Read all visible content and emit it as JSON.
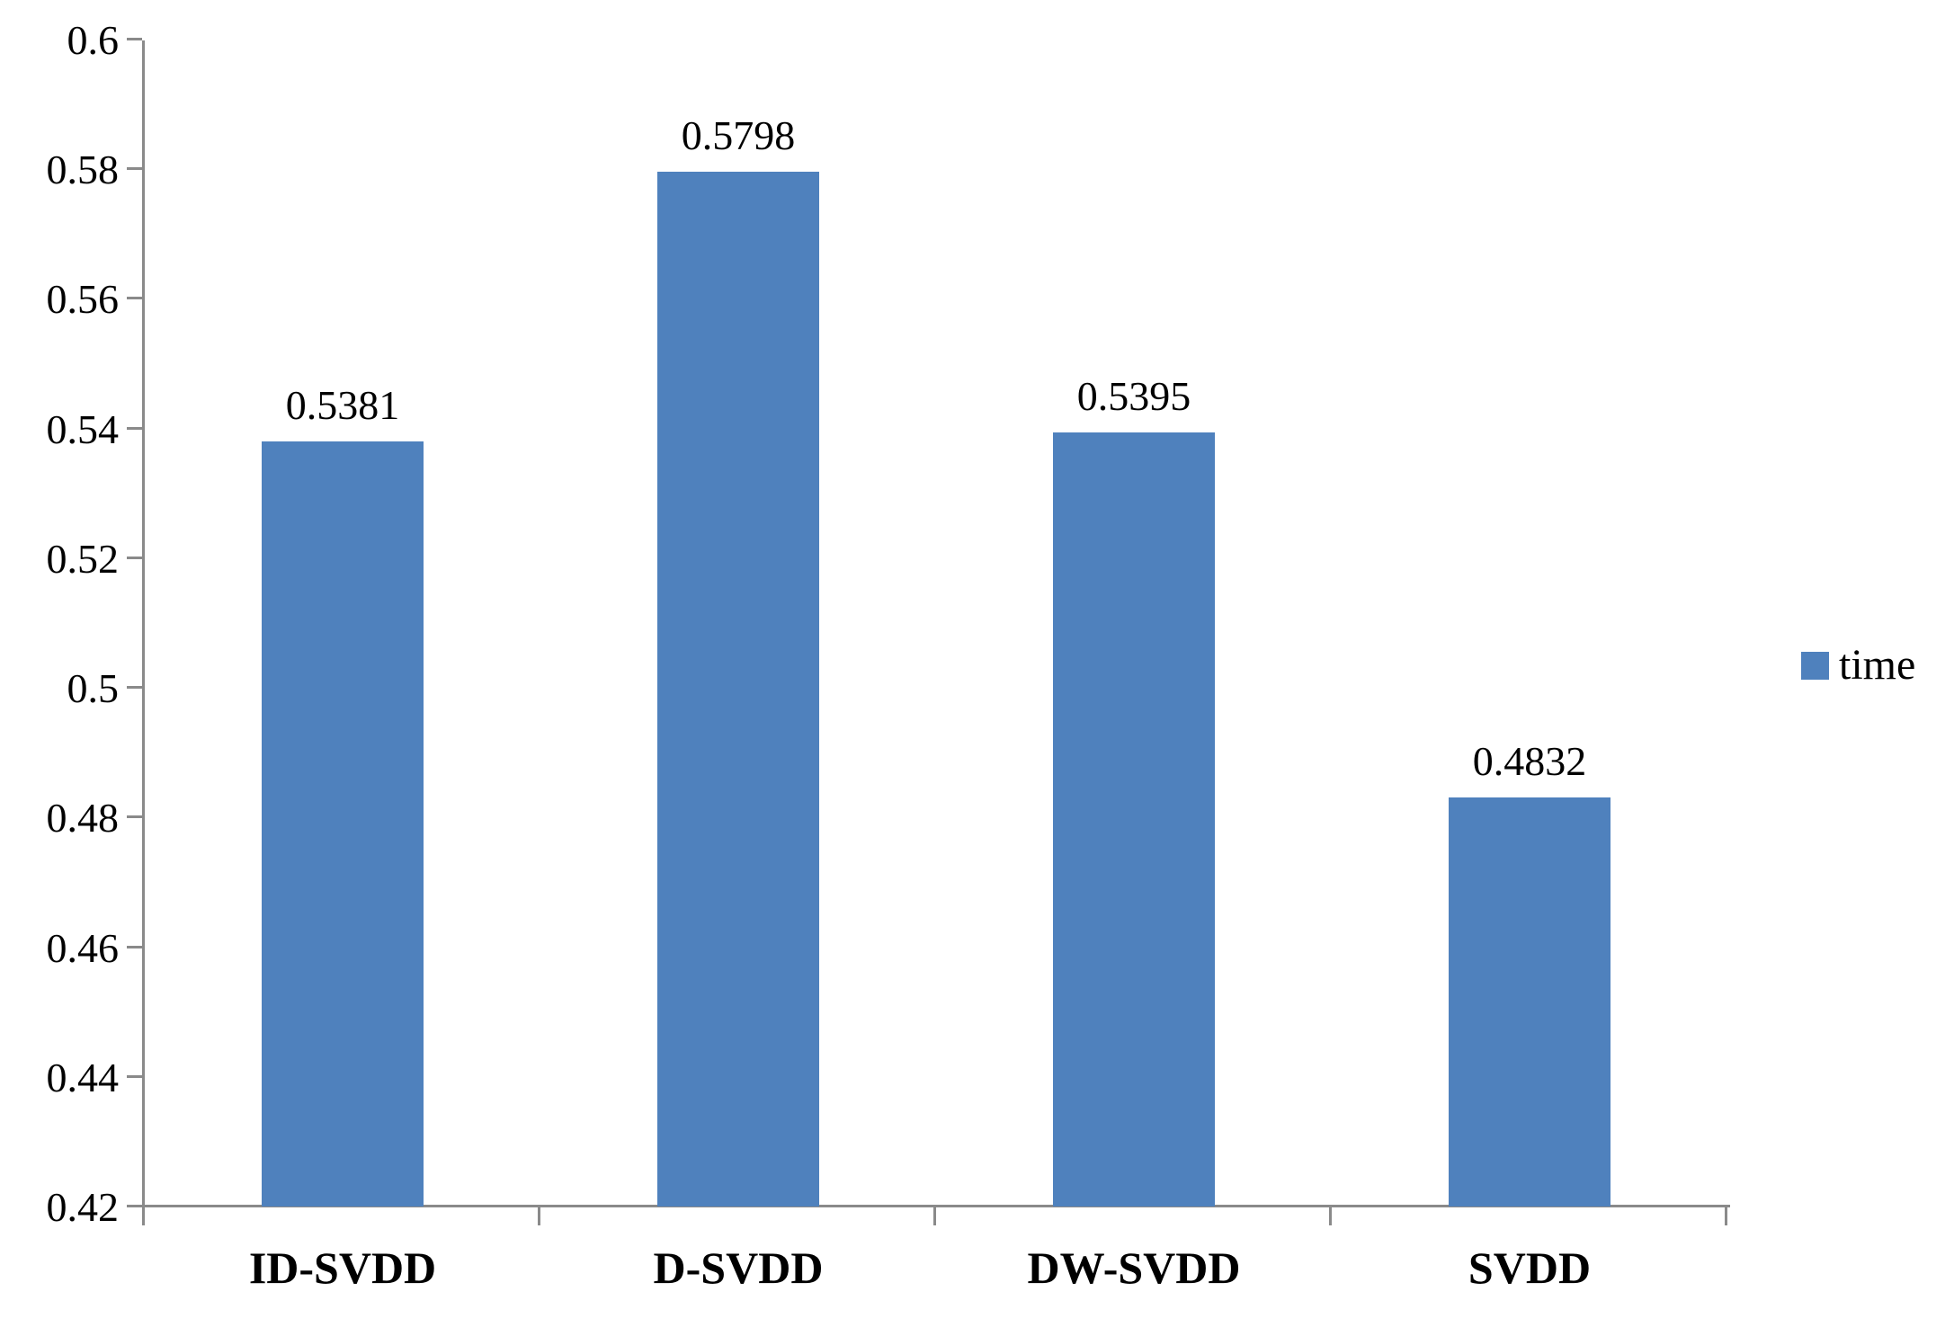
{
  "chart_data": {
    "type": "bar",
    "title": "",
    "xlabel": "",
    "ylabel": "",
    "categories": [
      "ID-SVDD",
      "D-SVDD",
      "DW-SVDD",
      "SVDD"
    ],
    "series": [
      {
        "name": "time",
        "values": [
          0.5381,
          0.5798,
          0.5395,
          0.4832
        ],
        "data_labels": [
          "0.5381",
          "0.5798",
          "0.5395",
          "0.4832"
        ]
      }
    ],
    "ylim": [
      0.42,
      0.6
    ],
    "y_ticks": [
      {
        "value": 0.6,
        "label": "0.6"
      },
      {
        "value": 0.58,
        "label": "0.58"
      },
      {
        "value": 0.56,
        "label": "0.56"
      },
      {
        "value": 0.54,
        "label": "0.54"
      },
      {
        "value": 0.52,
        "label": "0.52"
      },
      {
        "value": 0.5,
        "label": "0.5"
      },
      {
        "value": 0.48,
        "label": "0.48"
      },
      {
        "value": 0.46,
        "label": "0.46"
      },
      {
        "value": 0.44,
        "label": "0.44"
      },
      {
        "value": 0.42,
        "label": "0.42"
      }
    ],
    "grid": false,
    "legend_position": "right",
    "colors": {
      "bar": "#4F81BD",
      "axis": "#8A8A8A",
      "text": "#000000"
    }
  },
  "legend": {
    "label": "time",
    "swatch_color": "#4F81BD"
  }
}
